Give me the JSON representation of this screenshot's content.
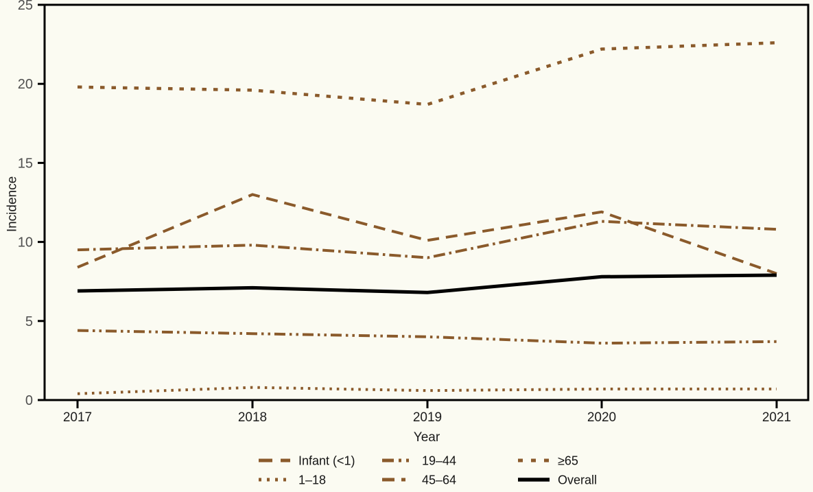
{
  "chart_data": {
    "type": "line",
    "title": "",
    "ylabel": "Incidence",
    "xlabel": "Year",
    "x": [
      "2017",
      "2018",
      "2019",
      "2020",
      "2021"
    ],
    "ylim": [
      0,
      25
    ],
    "yticks": [
      0,
      5,
      10,
      15,
      20,
      25
    ],
    "grid": false,
    "legend_position": "bottom",
    "colors": {
      "age_group_brown": "#8a5a2b",
      "overall_black": "#000000",
      "axis_black": "#000000",
      "ytick_gray": "#4f4f4f",
      "xtick_dark": "#1c1c1c",
      "background": "#fbfbf2"
    },
    "series": [
      {
        "name": "Infant (<1)",
        "values": [
          8.4,
          13.0,
          10.1,
          11.9,
          8.0
        ],
        "color": "#8a5a2b",
        "line_style": "long-dash",
        "width": 4
      },
      {
        "name": "1–18",
        "values": [
          0.4,
          0.8,
          0.6,
          0.7,
          0.7
        ],
        "color": "#8a5a2b",
        "line_style": "dot",
        "width": 4
      },
      {
        "name": "19–44",
        "values": [
          4.4,
          4.2,
          4.0,
          3.6,
          3.7
        ],
        "color": "#8a5a2b",
        "line_style": "dash-dot-dot",
        "width": 4
      },
      {
        "name": "45–64",
        "values": [
          9.5,
          9.8,
          9.0,
          11.3,
          10.8
        ],
        "color": "#8a5a2b",
        "line_style": "dash-dot",
        "width": 4
      },
      {
        "name": "≥65",
        "values": [
          19.8,
          19.6,
          18.7,
          22.2,
          22.6
        ],
        "color": "#8a5a2b",
        "line_style": "square-dot",
        "width": 4.5
      },
      {
        "name": "Overall",
        "values": [
          6.9,
          7.1,
          6.8,
          7.8,
          7.9
        ],
        "color": "#000000",
        "line_style": "solid",
        "width": 5
      }
    ],
    "legend_rows": [
      [
        "Infant (<1)",
        "19–44",
        "≥65"
      ],
      [
        "1–18",
        "45–64",
        "Overall"
      ]
    ]
  }
}
